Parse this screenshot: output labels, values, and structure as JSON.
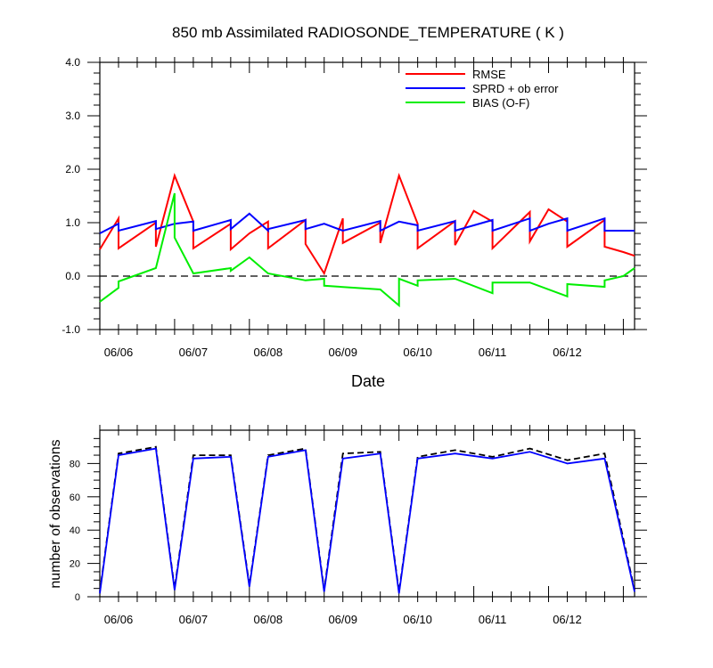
{
  "title": "850 mb Assimilated RADIOSONDE_TEMPERATURE ( K )",
  "colors": {
    "rmse": "#ff0000",
    "sprd": "#0000ff",
    "bias": "#00ee00",
    "obs_total": "#000000",
    "obs_used": "#0000ff"
  },
  "chart_data": [
    {
      "type": "line",
      "title": "850 mb Assimilated RADIOSONDE_TEMPERATURE ( K )",
      "xlabel": "Date",
      "ylabel": "",
      "ylim": [
        -1.0,
        4.0
      ],
      "xlim": [
        0,
        7.15
      ],
      "yticks": [
        "-1.0",
        "0.0",
        "1.0",
        "2.0",
        "3.0",
        "4.0"
      ],
      "xtick_labels": [
        "06/06",
        "06/07",
        "06/08",
        "06/09",
        "06/10",
        "06/11",
        "06/12"
      ],
      "legend_position": "top-right",
      "zero_line": "dashed",
      "series": [
        {
          "name": "RMSE",
          "x": [
            0,
            0.25,
            0.25,
            0.75,
            0.75,
            1.0,
            1.25,
            1.25,
            1.75,
            1.75,
            2.0,
            2.25,
            2.25,
            2.75,
            2.75,
            3.0,
            3.25,
            3.25,
            3.75,
            3.75,
            4.0,
            4.25,
            4.25,
            4.75,
            4.75,
            5.0,
            5.25,
            5.25,
            5.75,
            5.75,
            6.0,
            6.25,
            6.25,
            6.75,
            6.75,
            7.0,
            7.15
          ],
          "y": [
            0.5,
            1.08,
            0.52,
            1.0,
            0.55,
            1.88,
            1.02,
            0.52,
            0.98,
            0.5,
            0.8,
            1.02,
            0.52,
            1.05,
            0.6,
            0.05,
            1.08,
            0.62,
            1.0,
            0.62,
            1.88,
            0.98,
            0.52,
            1.03,
            0.58,
            1.22,
            1.02,
            0.52,
            1.2,
            0.65,
            1.25,
            1.02,
            0.55,
            1.05,
            0.55,
            0.45,
            0.38
          ]
        },
        {
          "name": "SPRD + ob error",
          "x": [
            0,
            0.25,
            0.25,
            0.75,
            0.75,
            1.0,
            1.25,
            1.25,
            1.75,
            1.75,
            2.0,
            2.25,
            2.25,
            2.75,
            2.75,
            3.0,
            3.25,
            3.25,
            3.75,
            3.75,
            4.0,
            4.25,
            4.25,
            4.75,
            4.75,
            5.0,
            5.25,
            5.25,
            5.75,
            5.75,
            6.0,
            6.25,
            6.25,
            6.75,
            6.75,
            7.0,
            7.15
          ],
          "y": [
            0.8,
            0.98,
            0.85,
            1.03,
            0.88,
            0.98,
            1.02,
            0.85,
            1.05,
            0.88,
            1.17,
            0.85,
            0.88,
            1.05,
            0.88,
            0.98,
            0.85,
            0.85,
            1.03,
            0.85,
            1.02,
            0.95,
            0.85,
            1.03,
            0.85,
            0.95,
            1.05,
            0.85,
            1.08,
            0.85,
            0.98,
            1.08,
            0.85,
            1.08,
            0.85,
            0.85,
            0.85
          ]
        },
        {
          "name": "BIAS (O-F)",
          "x": [
            0,
            0.25,
            0.25,
            0.75,
            1.0,
            1.0,
            1.25,
            1.75,
            1.75,
            2.0,
            2.25,
            2.75,
            3.0,
            3.0,
            3.75,
            4.0,
            4.0,
            4.25,
            4.25,
            4.75,
            5.25,
            5.25,
            5.75,
            6.25,
            6.25,
            6.75,
            6.75,
            7.0,
            7.15
          ],
          "y": [
            -0.48,
            -0.22,
            -0.1,
            0.15,
            1.55,
            0.72,
            0.05,
            0.15,
            0.1,
            0.35,
            0.05,
            -0.08,
            -0.05,
            -0.18,
            -0.25,
            -0.55,
            -0.05,
            -0.18,
            -0.08,
            -0.05,
            -0.32,
            -0.12,
            -0.12,
            -0.38,
            -0.15,
            -0.2,
            -0.08,
            0.0,
            0.15
          ]
        }
      ]
    },
    {
      "type": "line",
      "title": "",
      "xlabel": "",
      "ylabel": "number of observations",
      "ylim": [
        0,
        100
      ],
      "xlim": [
        0,
        7.15
      ],
      "yticks": [
        "0",
        "20",
        "40",
        "60",
        "80"
      ],
      "xtick_labels": [
        "06/06",
        "06/07",
        "06/08",
        "06/09",
        "06/10",
        "06/11",
        "06/12"
      ],
      "series": [
        {
          "line_style": "dashed",
          "color": "#000000",
          "x": [
            0,
            0.25,
            0.75,
            1.0,
            1.25,
            1.75,
            2.0,
            2.25,
            2.75,
            3.0,
            3.25,
            3.75,
            4.0,
            4.25,
            4.75,
            5.25,
            5.75,
            6.25,
            6.75,
            7.15
          ],
          "y": [
            3,
            86,
            90,
            5,
            85,
            85,
            7,
            85,
            89,
            4,
            86,
            87,
            3,
            84,
            88,
            84,
            89,
            82,
            86,
            4
          ]
        },
        {
          "line_style": "solid",
          "color": "#0000ff",
          "x": [
            0,
            0.25,
            0.75,
            1.0,
            1.25,
            1.75,
            2.0,
            2.25,
            2.75,
            3.0,
            3.25,
            3.75,
            4.0,
            4.25,
            4.75,
            5.25,
            5.75,
            6.25,
            6.75,
            7.15
          ],
          "y": [
            2,
            85,
            89,
            4,
            83,
            84,
            6,
            84,
            88,
            3,
            83,
            86,
            2,
            83,
            86,
            83,
            87,
            80,
            83,
            3
          ]
        }
      ]
    }
  ]
}
